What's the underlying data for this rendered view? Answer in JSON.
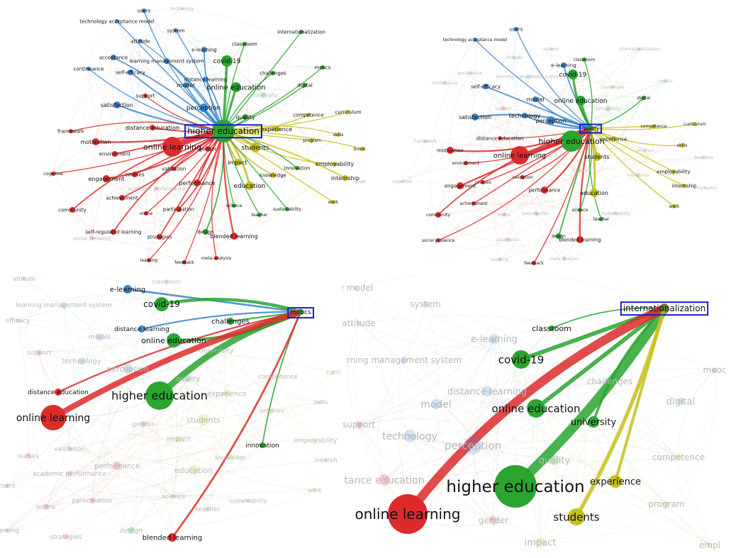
{
  "palette": {
    "blue": "#3d86cb",
    "green": "#2aa52f",
    "red": "#dd2b2b",
    "yellow": "#c7bf1b",
    "highlight": "#1a1acd"
  },
  "panels": [
    {
      "focus": "higher education",
      "highlight": "higher education",
      "nodes": [
        {
          "label": "users",
          "cluster": "blue"
        },
        {
          "label": "technology",
          "cluster": "blue"
        },
        {
          "label": "technology acceptance model",
          "cluster": "blue"
        },
        {
          "label": "system",
          "cluster": "blue"
        },
        {
          "label": "attitude",
          "cluster": "blue"
        },
        {
          "label": "e-learning",
          "cluster": "blue"
        },
        {
          "label": "classroom",
          "cluster": "green"
        },
        {
          "label": "internationalization",
          "cluster": "green"
        },
        {
          "label": "acceptance",
          "cluster": "blue"
        },
        {
          "label": "learning management system",
          "cluster": "blue"
        },
        {
          "label": "continuance",
          "cluster": "blue"
        },
        {
          "label": "self-efficacy",
          "cluster": "blue"
        },
        {
          "label": "covid-19",
          "cluster": "green"
        },
        {
          "label": "moocs",
          "cluster": "green"
        },
        {
          "label": "distance learning",
          "cluster": "blue"
        },
        {
          "label": "challenges",
          "cluster": "green"
        },
        {
          "label": "model",
          "cluster": "blue"
        },
        {
          "label": "online education",
          "cluster": "green"
        },
        {
          "label": "digital",
          "cluster": "green"
        },
        {
          "label": "university",
          "cluster": "green"
        },
        {
          "label": "support",
          "cluster": "red"
        },
        {
          "label": "satisfaction",
          "cluster": "blue"
        },
        {
          "label": "perception",
          "cluster": "blue"
        },
        {
          "label": "curriculum",
          "cluster": "yellow"
        },
        {
          "label": "competence",
          "cluster": "yellow"
        },
        {
          "label": "quality",
          "cluster": "green"
        },
        {
          "label": "distance education",
          "cluster": "red"
        },
        {
          "label": "higher education",
          "cluster": "green"
        },
        {
          "label": "experience",
          "cluster": "yellow"
        },
        {
          "label": "framework",
          "cluster": "red"
        },
        {
          "label": "skills",
          "cluster": "yellow"
        },
        {
          "label": "motivation",
          "cluster": "red"
        },
        {
          "label": "program",
          "cluster": "yellow"
        },
        {
          "label": "online learning",
          "cluster": "red"
        },
        {
          "label": "gender",
          "cluster": "red"
        },
        {
          "label": "students",
          "cluster": "yellow"
        },
        {
          "label": "business",
          "cluster": "yellow"
        },
        {
          "label": "environment",
          "cluster": "red"
        },
        {
          "label": "impact",
          "cluster": "yellow"
        },
        {
          "label": "employability",
          "cluster": "yellow"
        },
        {
          "label": "innovation",
          "cluster": "green"
        },
        {
          "label": "cognitive",
          "cluster": "red"
        },
        {
          "label": "courses",
          "cluster": "red"
        },
        {
          "label": "validation",
          "cluster": "red"
        },
        {
          "label": "knowledge",
          "cluster": "yellow"
        },
        {
          "label": "engagement",
          "cluster": "red"
        },
        {
          "label": "internship",
          "cluster": "yellow"
        },
        {
          "label": "employers",
          "cluster": "yellow"
        },
        {
          "label": "performance",
          "cluster": "red"
        },
        {
          "label": "academic performance",
          "cluster": "red"
        },
        {
          "label": "education",
          "cluster": "yellow"
        },
        {
          "label": "achievement",
          "cluster": "red"
        },
        {
          "label": "work",
          "cluster": "yellow"
        },
        {
          "label": "science",
          "cluster": "green"
        },
        {
          "label": "community",
          "cluster": "red"
        },
        {
          "label": "participation",
          "cluster": "red"
        },
        {
          "label": "online",
          "cluster": "red"
        },
        {
          "label": "sustainability",
          "cluster": "green"
        },
        {
          "label": "teacher",
          "cluster": "green"
        },
        {
          "label": "self-regulated learning",
          "cluster": "red"
        },
        {
          "label": "design",
          "cluster": "green"
        },
        {
          "label": "social presence",
          "cluster": "red"
        },
        {
          "label": "strategies",
          "cluster": "red"
        },
        {
          "label": "blended learning",
          "cluster": "red"
        },
        {
          "label": "meta-analysis",
          "cluster": "red"
        },
        {
          "label": "learning",
          "cluster": "red"
        },
        {
          "label": "feedback",
          "cluster": "red"
        }
      ]
    },
    {
      "focus": "quality",
      "highlight": "quality",
      "nodes": [
        {
          "label": "users",
          "cluster": "blue"
        },
        {
          "label": "technology acceptance model",
          "cluster": "blue"
        },
        {
          "label": "system",
          "cluster": "blue"
        },
        {
          "label": "attitude",
          "cluster": "blue"
        },
        {
          "label": "classroom",
          "cluster": "green"
        },
        {
          "label": "internationalization",
          "cluster": "green"
        },
        {
          "label": "e-learning",
          "cluster": "blue"
        },
        {
          "label": "acceptance",
          "cluster": "blue"
        },
        {
          "label": "learning management system",
          "cluster": "blue"
        },
        {
          "label": "moocs",
          "cluster": "green"
        },
        {
          "label": "covid-19",
          "cluster": "green"
        },
        {
          "label": "continuance",
          "cluster": "blue"
        },
        {
          "label": "self-efficacy",
          "cluster": "blue"
        },
        {
          "label": "challenges",
          "cluster": "green"
        },
        {
          "label": "digital",
          "cluster": "green"
        },
        {
          "label": "model",
          "cluster": "blue"
        },
        {
          "label": "online education",
          "cluster": "green"
        },
        {
          "label": "university",
          "cluster": "green"
        },
        {
          "label": "support",
          "cluster": "red"
        },
        {
          "label": "satisfaction",
          "cluster": "blue"
        },
        {
          "label": "technology",
          "cluster": "blue"
        },
        {
          "label": "perception",
          "cluster": "blue"
        },
        {
          "label": "competence",
          "cluster": "yellow"
        },
        {
          "label": "curriculum",
          "cluster": "yellow"
        },
        {
          "label": "quality",
          "cluster": "green"
        },
        {
          "label": "framework",
          "cluster": "red"
        },
        {
          "label": "distance education",
          "cluster": "red"
        },
        {
          "label": "higher education",
          "cluster": "green"
        },
        {
          "label": "experience",
          "cluster": "yellow"
        },
        {
          "label": "skills",
          "cluster": "yellow"
        },
        {
          "label": "motivation",
          "cluster": "red"
        },
        {
          "label": "online learning",
          "cluster": "red"
        },
        {
          "label": "students",
          "cluster": "yellow"
        },
        {
          "label": "program",
          "cluster": "yellow"
        },
        {
          "label": "business",
          "cluster": "yellow"
        },
        {
          "label": "environment",
          "cluster": "red"
        },
        {
          "label": "impact",
          "cluster": "yellow"
        },
        {
          "label": "employability",
          "cluster": "yellow"
        },
        {
          "label": "innovation",
          "cluster": "green"
        },
        {
          "label": "cognitive",
          "cluster": "red"
        },
        {
          "label": "validation",
          "cluster": "red"
        },
        {
          "label": "courses",
          "cluster": "red"
        },
        {
          "label": "engagement",
          "cluster": "red"
        },
        {
          "label": "internship",
          "cluster": "yellow"
        },
        {
          "label": "employers",
          "cluster": "yellow"
        },
        {
          "label": "performance",
          "cluster": "red"
        },
        {
          "label": "education",
          "cluster": "yellow"
        },
        {
          "label": "achievement",
          "cluster": "red"
        },
        {
          "label": "work",
          "cluster": "yellow"
        },
        {
          "label": "community",
          "cluster": "red"
        },
        {
          "label": "science",
          "cluster": "green"
        },
        {
          "label": "participation",
          "cluster": "red"
        },
        {
          "label": "online",
          "cluster": "red"
        },
        {
          "label": "sustainability",
          "cluster": "green"
        },
        {
          "label": "teacher",
          "cluster": "green"
        },
        {
          "label": "social presence",
          "cluster": "red"
        },
        {
          "label": "strategies",
          "cluster": "red"
        },
        {
          "label": "design",
          "cluster": "green"
        },
        {
          "label": "blended learning",
          "cluster": "red"
        },
        {
          "label": "learning",
          "cluster": "red"
        },
        {
          "label": "meta-analysis",
          "cluster": "red"
        },
        {
          "label": "feedback",
          "cluster": "red"
        }
      ]
    },
    {
      "focus": "moocs",
      "highlight": "moocs",
      "nodes": [
        {
          "label": "attitude",
          "cluster": "blue"
        },
        {
          "label": "classroom",
          "cluster": "green"
        },
        {
          "label": "e-learning",
          "cluster": "blue"
        },
        {
          "label": "learning management system",
          "cluster": "blue"
        },
        {
          "label": "covid-19",
          "cluster": "green"
        },
        {
          "label": "moocs",
          "cluster": "green"
        },
        {
          "label": "efficacy",
          "cluster": "blue"
        },
        {
          "label": "challenges",
          "cluster": "green"
        },
        {
          "label": "distance learning",
          "cluster": "blue"
        },
        {
          "label": "model",
          "cluster": "blue"
        },
        {
          "label": "online education",
          "cluster": "green"
        },
        {
          "label": "support",
          "cluster": "red"
        },
        {
          "label": "university",
          "cluster": "green"
        },
        {
          "label": "technology",
          "cluster": "blue"
        },
        {
          "label": "perception",
          "cluster": "blue"
        },
        {
          "label": "competence",
          "cluster": "yellow"
        },
        {
          "label": "curri",
          "cluster": "yellow"
        },
        {
          "label": "quality",
          "cluster": "green"
        },
        {
          "label": "distance education",
          "cluster": "red"
        },
        {
          "label": "higher education",
          "cluster": "green"
        },
        {
          "label": "experience",
          "cluster": "yellow"
        },
        {
          "label": "skills",
          "cluster": "yellow"
        },
        {
          "label": "program",
          "cluster": "yellow"
        },
        {
          "label": "online learning",
          "cluster": "red"
        },
        {
          "label": "gender",
          "cluster": "red"
        },
        {
          "label": "students",
          "cluster": "yellow"
        },
        {
          "label": "impact",
          "cluster": "yellow"
        },
        {
          "label": "employability",
          "cluster": "yellow"
        },
        {
          "label": "innovation",
          "cluster": "green"
        },
        {
          "label": "ourses",
          "cluster": "red"
        },
        {
          "label": "validation",
          "cluster": "red"
        },
        {
          "label": "knowledge",
          "cluster": "yellow"
        },
        {
          "label": "intersh",
          "cluster": "yellow"
        },
        {
          "label": "performance",
          "cluster": "red"
        },
        {
          "label": "academic performance",
          "cluster": "red"
        },
        {
          "label": "education",
          "cluster": "yellow"
        },
        {
          "label": "ment",
          "cluster": "red"
        },
        {
          "label": "work",
          "cluster": "yellow"
        },
        {
          "label": "science",
          "cluster": "green"
        },
        {
          "label": "participation",
          "cluster": "red"
        },
        {
          "label": "sustainability",
          "cluster": "green"
        },
        {
          "label": "online",
          "cluster": "red"
        },
        {
          "label": "teacher",
          "cluster": "green"
        },
        {
          "label": "earning",
          "cluster": "red"
        },
        {
          "label": "strategies",
          "cluster": "red"
        },
        {
          "label": "design",
          "cluster": "green"
        },
        {
          "label": "blended learning",
          "cluster": "red"
        }
      ]
    },
    {
      "focus": "internationalization",
      "highlight": "internationalization",
      "nodes": [
        {
          "label": "e model",
          "cluster": "blue"
        },
        {
          "label": "system",
          "cluster": "blue"
        },
        {
          "label": "internationalization",
          "cluster": "green"
        },
        {
          "label": "attitude",
          "cluster": "blue"
        },
        {
          "label": "classroom",
          "cluster": "green"
        },
        {
          "label": "e-learning",
          "cluster": "blue"
        },
        {
          "label": "rning management system",
          "cluster": "blue"
        },
        {
          "label": "covid-19",
          "cluster": "green"
        },
        {
          "label": "mooc",
          "cluster": "green"
        },
        {
          "label": "challenges",
          "cluster": "green"
        },
        {
          "label": "distance learning",
          "cluster": "blue"
        },
        {
          "label": "model",
          "cluster": "blue"
        },
        {
          "label": "online education",
          "cluster": "green"
        },
        {
          "label": "digital",
          "cluster": "green"
        },
        {
          "label": "university",
          "cluster": "green"
        },
        {
          "label": "support",
          "cluster": "red"
        },
        {
          "label": "technology",
          "cluster": "blue"
        },
        {
          "label": "perception",
          "cluster": "blue"
        },
        {
          "label": "quality",
          "cluster": "green"
        },
        {
          "label": "competence",
          "cluster": "yellow"
        },
        {
          "label": "tance education",
          "cluster": "red"
        },
        {
          "label": "higher education",
          "cluster": "green"
        },
        {
          "label": "experience",
          "cluster": "yellow"
        },
        {
          "label": "program",
          "cluster": "yellow"
        },
        {
          "label": "online learning",
          "cluster": "red"
        },
        {
          "label": "gender",
          "cluster": "red"
        },
        {
          "label": "students",
          "cluster": "yellow"
        },
        {
          "label": "impact",
          "cluster": "yellow"
        },
        {
          "label": "empl",
          "cluster": "yellow"
        }
      ]
    }
  ]
}
